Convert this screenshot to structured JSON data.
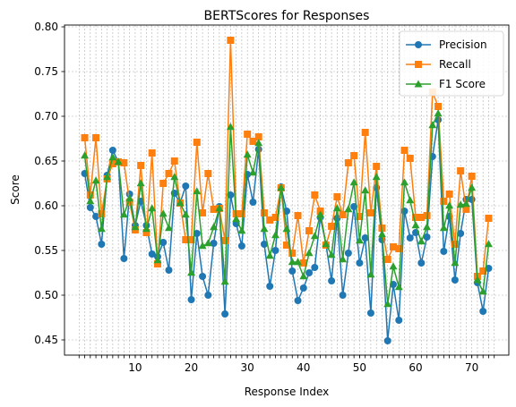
{
  "chart_data": {
    "type": "line",
    "title": "BERTScores for Responses",
    "xlabel": "Response Index",
    "ylabel": "Score",
    "xlim": [
      -2.6,
      76.6
    ],
    "ylim": [
      0.433,
      0.802
    ],
    "yticks": [
      0.45,
      0.5,
      0.55,
      0.6,
      0.65,
      0.7,
      0.75,
      0.8
    ],
    "ytick_labels": [
      "0.45",
      "0.50",
      "0.55",
      "0.60",
      "0.65",
      "0.70",
      "0.75",
      "0.80"
    ],
    "xtick_labels": [
      "10",
      "20",
      "30",
      "40",
      "50",
      "60",
      "70"
    ],
    "xtick_label_values": [
      10,
      20,
      30,
      40,
      50,
      60,
      70
    ],
    "x_minor_ticks_every": 1,
    "grid": true,
    "legend_position": "top-right",
    "x": [
      1,
      2,
      3,
      4,
      5,
      6,
      7,
      8,
      9,
      10,
      11,
      12,
      13,
      14,
      15,
      16,
      17,
      18,
      19,
      20,
      21,
      22,
      23,
      24,
      25,
      26,
      27,
      28,
      29,
      30,
      31,
      32,
      33,
      34,
      35,
      36,
      37,
      38,
      39,
      40,
      41,
      42,
      43,
      44,
      45,
      46,
      47,
      48,
      49,
      50,
      51,
      52,
      53,
      54,
      55,
      56,
      57,
      58,
      59,
      60,
      61,
      62,
      63,
      64,
      65,
      66,
      67,
      68,
      69,
      70,
      71,
      72,
      73
    ],
    "series": [
      {
        "name": "Precision",
        "color": "#1f77b4",
        "marker": "circle",
        "values": [
          0.636,
          0.598,
          0.588,
          0.557,
          0.634,
          0.662,
          0.649,
          0.541,
          0.613,
          0.578,
          0.605,
          0.578,
          0.546,
          0.543,
          0.559,
          0.528,
          0.614,
          0.603,
          0.622,
          0.495,
          0.569,
          0.521,
          0.5,
          0.558,
          0.599,
          0.479,
          0.612,
          0.58,
          0.555,
          0.635,
          0.604,
          0.663,
          0.557,
          0.51,
          0.55,
          0.621,
          0.594,
          0.527,
          0.494,
          0.508,
          0.525,
          0.531,
          0.587,
          0.557,
          0.516,
          0.586,
          0.5,
          0.547,
          0.599,
          0.536,
          0.564,
          0.48,
          0.62,
          0.562,
          0.449,
          0.512,
          0.472,
          0.594,
          0.564,
          0.57,
          0.536,
          0.565,
          0.655,
          0.696,
          0.549,
          0.588,
          0.517,
          0.569,
          0.607,
          0.607,
          0.514,
          0.482,
          0.53
        ]
      },
      {
        "name": "Recall",
        "color": "#ff7f0e",
        "marker": "square",
        "values": [
          0.676,
          0.612,
          0.676,
          0.591,
          0.63,
          0.647,
          0.649,
          0.648,
          0.604,
          0.573,
          0.645,
          0.57,
          0.659,
          0.535,
          0.625,
          0.636,
          0.65,
          0.603,
          0.562,
          0.562,
          0.671,
          0.592,
          0.636,
          0.596,
          0.597,
          0.561,
          0.785,
          0.591,
          0.591,
          0.68,
          0.672,
          0.677,
          0.592,
          0.584,
          0.587,
          0.62,
          0.556,
          0.547,
          0.589,
          0.536,
          0.572,
          0.612,
          0.594,
          0.556,
          0.577,
          0.61,
          0.59,
          0.648,
          0.656,
          0.588,
          0.682,
          0.592,
          0.644,
          0.575,
          0.54,
          0.554,
          0.552,
          0.662,
          0.653,
          0.587,
          0.587,
          0.589,
          0.727,
          0.711,
          0.605,
          0.613,
          0.557,
          0.639,
          0.596,
          0.633,
          0.521,
          0.527,
          0.586
        ]
      },
      {
        "name": "F1 Score",
        "color": "#2ca02c",
        "marker": "triangle",
        "values": [
          0.656,
          0.605,
          0.628,
          0.574,
          0.632,
          0.654,
          0.649,
          0.59,
          0.608,
          0.576,
          0.625,
          0.574,
          0.597,
          0.539,
          0.591,
          0.575,
          0.632,
          0.603,
          0.59,
          0.525,
          0.616,
          0.555,
          0.558,
          0.576,
          0.597,
          0.515,
          0.688,
          0.585,
          0.572,
          0.657,
          0.637,
          0.67,
          0.574,
          0.544,
          0.567,
          0.62,
          0.574,
          0.537,
          0.537,
          0.521,
          0.547,
          0.566,
          0.59,
          0.557,
          0.545,
          0.597,
          0.54,
          0.596,
          0.626,
          0.561,
          0.617,
          0.523,
          0.632,
          0.568,
          0.49,
          0.532,
          0.509,
          0.626,
          0.606,
          0.578,
          0.56,
          0.576,
          0.69,
          0.703,
          0.575,
          0.6,
          0.536,
          0.601,
          0.602,
          0.62,
          0.517,
          0.504,
          0.557
        ]
      }
    ]
  }
}
